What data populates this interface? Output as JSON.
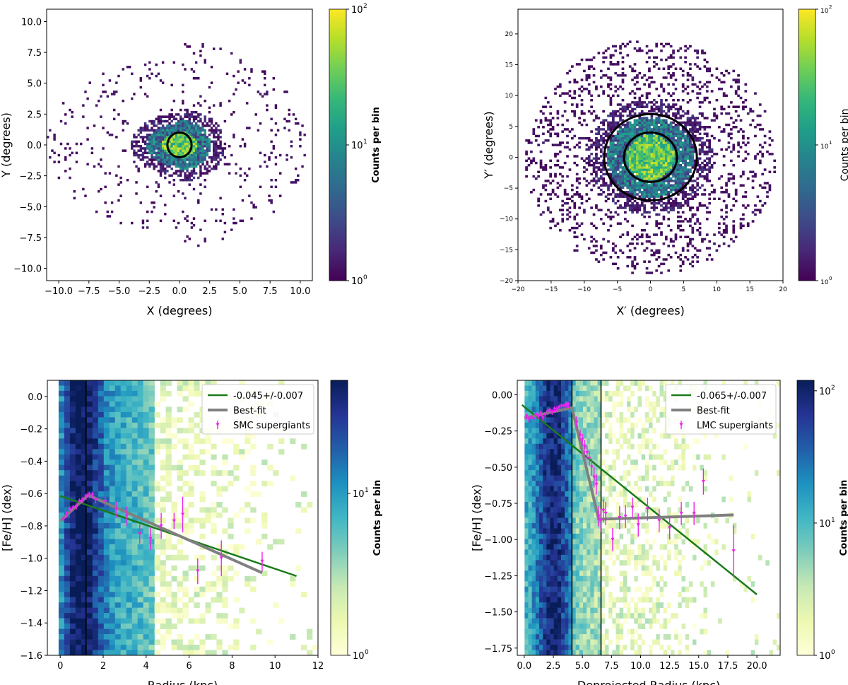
{
  "chart_data": [
    {
      "type": "heatmap",
      "xlabel": "X (degrees)",
      "ylabel": "Y (degrees)",
      "xlim": [
        -11,
        11
      ],
      "ylim": [
        -11,
        11
      ],
      "xticks": [
        -10.0,
        -7.5,
        -5.0,
        -2.5,
        0.0,
        2.5,
        5.0,
        7.5,
        10.0
      ],
      "yticks": [
        -10.0,
        -7.5,
        -5.0,
        -2.5,
        0.0,
        2.5,
        5.0,
        7.5,
        10.0
      ],
      "colormap": "viridis",
      "colorbar": {
        "label": "Counts per bin",
        "scale": "log",
        "range": [
          1,
          100
        ],
        "ticks": [
          "10",
          "10",
          "10"
        ],
        "tick_exps": [
          "0",
          "1",
          "2"
        ]
      },
      "circles": [
        {
          "cx": 0,
          "cy": 0,
          "r": 1.0
        }
      ],
      "density": {
        "core_center": [
          0,
          0
        ],
        "core_radius": 2.6,
        "halo_radius": 10.5
      }
    },
    {
      "type": "heatmap",
      "xlabel": "X′ (degrees)",
      "ylabel": "Y′ (degrees)",
      "xlim": [
        -20,
        20
      ],
      "ylim": [
        -20,
        24
      ],
      "xticks": [
        -20,
        -15,
        -10,
        -5,
        0,
        5,
        10,
        15,
        20
      ],
      "yticks": [
        -20,
        -15,
        -10,
        -5,
        0,
        5,
        10,
        15,
        20
      ],
      "colormap": "viridis",
      "colorbar": {
        "label": "Counts per bin",
        "scale": "log",
        "range": [
          1,
          100
        ],
        "ticks": [
          "10",
          "10",
          "10"
        ],
        "tick_exps": [
          "0",
          "1",
          "2"
        ]
      },
      "circles": [
        {
          "cx": 0,
          "cy": 0,
          "r": 4.0
        },
        {
          "cx": 0,
          "cy": 0,
          "r": 7.0
        }
      ],
      "density": {
        "core_center": [
          0,
          0
        ],
        "core_radius": 6.5,
        "halo_radius": 19
      }
    },
    {
      "type": "heatmap",
      "xlabel": "Radius (kpc)",
      "ylabel": "[Fe/H]   (dex)",
      "xlim": [
        -0.6,
        12.0
      ],
      "ylim": [
        -1.6,
        0.1
      ],
      "xticks": [
        0,
        2,
        4,
        6,
        8,
        10,
        12
      ],
      "yticks": [
        -1.6,
        -1.4,
        -1.2,
        -1.0,
        -0.8,
        -0.6,
        -0.4,
        -0.2,
        0.0
      ],
      "colormap": "YlGnBu",
      "colorbar": {
        "label": "Counts per bin",
        "scale": "log",
        "range": [
          1,
          50
        ],
        "ticks": [
          "10",
          "10"
        ],
        "tick_exps": [
          "0",
          "1"
        ]
      },
      "vlines": [
        1.2
      ],
      "legend": {
        "position": "upper right",
        "entries": [
          "-0.045+/-0.007",
          "Best-fit",
          "SMC supergiants"
        ]
      },
      "series": [
        {
          "name": "-0.045+/-0.007",
          "kind": "line",
          "color": "#1a7a1a",
          "x": [
            0,
            11
          ],
          "y": [
            -0.615,
            -1.11
          ]
        },
        {
          "name": "Best-fit",
          "kind": "line",
          "color": "#808080",
          "x": [
            0.0,
            1.3,
            9.4
          ],
          "y": [
            -0.77,
            -0.61,
            -1.09
          ]
        },
        {
          "name": "SMC supergiants",
          "kind": "errorbar",
          "color": "#ee22ee",
          "x": [
            0.15,
            0.3,
            0.45,
            0.6,
            0.75,
            0.9,
            1.05,
            1.2,
            1.35,
            1.5,
            1.65,
            2.1,
            2.6,
            3.1,
            3.7,
            4.2,
            4.7,
            5.3,
            5.7,
            6.4,
            7.5,
            9.4
          ],
          "y": [
            -0.76,
            -0.73,
            -0.7,
            -0.69,
            -0.68,
            -0.65,
            -0.64,
            -0.62,
            -0.61,
            -0.61,
            -0.64,
            -0.65,
            -0.7,
            -0.74,
            -0.85,
            -0.88,
            -0.8,
            -0.77,
            -0.73,
            -1.08,
            -1.0,
            -1.02
          ],
          "yerr": [
            0.02,
            0.02,
            0.02,
            0.02,
            0.02,
            0.02,
            0.02,
            0.02,
            0.02,
            0.02,
            0.02,
            0.03,
            0.05,
            0.06,
            0.06,
            0.07,
            0.08,
            0.05,
            0.11,
            0.08,
            0.11,
            0.06
          ]
        }
      ],
      "density": {
        "peak_x": 0.9,
        "spread_x": 2.0,
        "tail_x": 6.5
      }
    },
    {
      "type": "heatmap",
      "xlabel": "Deprojected Radius (kpc)",
      "ylabel": "[Fe/H]   (dex)",
      "xlim": [
        -0.6,
        22.0
      ],
      "ylim": [
        -1.8,
        0.1
      ],
      "xticks": [
        0.0,
        2.5,
        5.0,
        7.5,
        10.0,
        12.5,
        15.0,
        17.5,
        20.0
      ],
      "yticks": [
        -1.75,
        -1.5,
        -1.25,
        -1.0,
        -0.75,
        -0.5,
        -0.25,
        0.0
      ],
      "colormap": "YlGnBu",
      "colorbar": {
        "label": "Counts per bin",
        "scale": "log",
        "range": [
          1,
          120
        ],
        "ticks": [
          "10",
          "10",
          "10"
        ],
        "tick_exps": [
          "0",
          "1",
          "2"
        ]
      },
      "vlines": [
        4.1,
        6.6
      ],
      "legend": {
        "position": "upper right",
        "entries": [
          "-0.065+/-0.007",
          "Best-fit",
          "LMC supergiants"
        ]
      },
      "series": [
        {
          "name": "-0.065+/-0.007",
          "kind": "line",
          "color": "#1a7a1a",
          "x": [
            -0.2,
            20.0
          ],
          "y": [
            -0.07,
            -1.38
          ]
        },
        {
          "name": "Best-fit",
          "kind": "line",
          "color": "#808080",
          "x": [
            0.0,
            4.1,
            6.4,
            18.0
          ],
          "y": [
            -0.16,
            -0.09,
            -0.86,
            -0.83
          ]
        },
        {
          "name": "LMC supergiants",
          "kind": "errorbar",
          "color": "#ee22ee",
          "x": [
            0.2,
            0.4,
            0.6,
            0.8,
            1.0,
            1.2,
            1.4,
            1.6,
            1.8,
            2.0,
            2.2,
            2.4,
            2.6,
            2.8,
            3.0,
            3.2,
            3.4,
            3.6,
            3.8,
            4.5,
            4.8,
            5.0,
            5.2,
            5.4,
            5.6,
            5.8,
            6.0,
            6.2,
            6.4,
            6.6,
            6.8,
            7.0,
            7.6,
            8.2,
            8.7,
            9.3,
            9.8,
            10.6,
            11.6,
            12.5,
            13.5,
            14.6,
            15.4,
            18.0
          ],
          "y": [
            -0.15,
            -0.17,
            -0.16,
            -0.17,
            -0.14,
            -0.15,
            -0.13,
            -0.16,
            -0.14,
            -0.12,
            -0.11,
            -0.12,
            -0.1,
            -0.1,
            -0.09,
            -0.08,
            -0.08,
            -0.07,
            -0.07,
            -0.19,
            -0.28,
            -0.31,
            -0.36,
            -0.4,
            -0.44,
            -0.5,
            -0.57,
            -0.62,
            -0.84,
            -0.87,
            -0.8,
            -0.82,
            -1.0,
            -0.85,
            -0.84,
            -0.78,
            -0.9,
            -0.79,
            -0.87,
            -0.92,
            -0.82,
            -0.82,
            -0.6,
            -1.08
          ],
          "yerr": [
            0.02,
            0.02,
            0.02,
            0.02,
            0.02,
            0.02,
            0.02,
            0.02,
            0.02,
            0.02,
            0.02,
            0.02,
            0.02,
            0.02,
            0.02,
            0.02,
            0.02,
            0.02,
            0.02,
            0.04,
            0.04,
            0.04,
            0.05,
            0.05,
            0.05,
            0.06,
            0.07,
            0.07,
            0.07,
            0.08,
            0.08,
            0.08,
            0.08,
            0.08,
            0.08,
            0.07,
            0.08,
            0.08,
            0.08,
            0.08,
            0.08,
            0.08,
            0.09,
            0.18
          ]
        }
      ],
      "density": {
        "band_x": [
          0.0,
          6.6
        ],
        "peak_x": 2.5,
        "tail_x": 16
      }
    }
  ]
}
